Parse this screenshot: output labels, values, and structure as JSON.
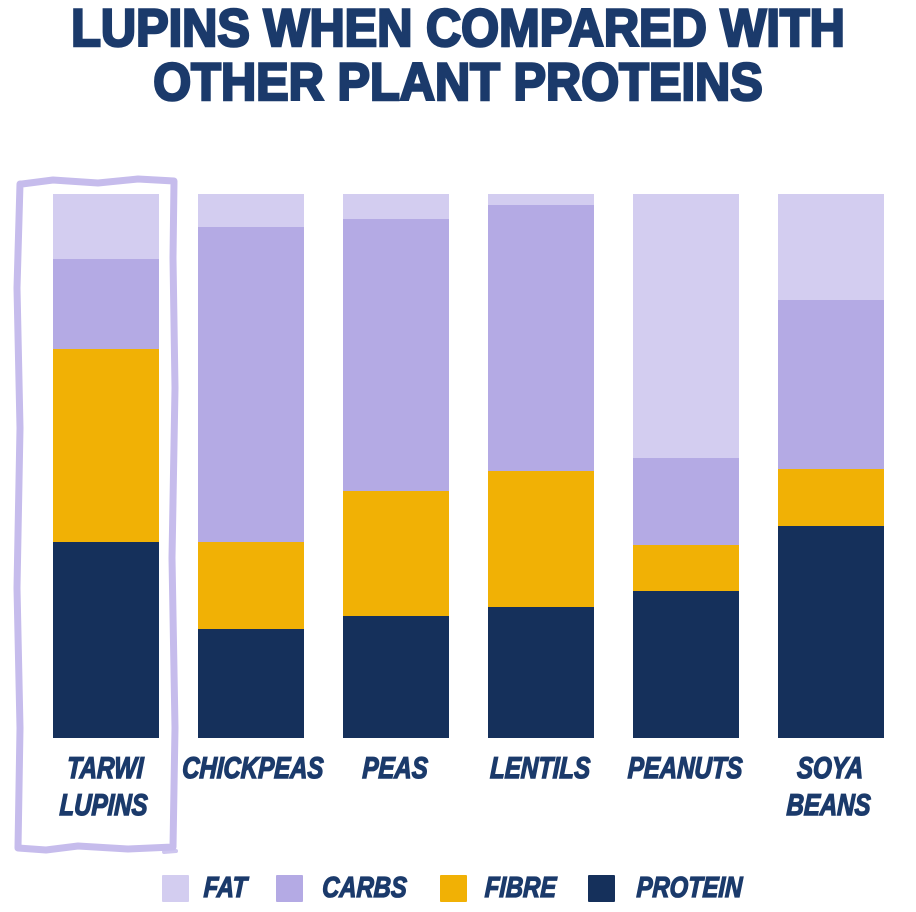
{
  "title": "LUPINS WHEN COMPARED WITH\nOTHER PLANT PROTEINS",
  "colors": {
    "fat": "#D3CDF0",
    "carbs": "#B4AAE4",
    "fibre": "#F1B105",
    "protein": "#15305B",
    "title_navy": "#1B3A6B",
    "highlight_border": "#C6BCEC",
    "background": "#FFFFFF"
  },
  "chart_data": {
    "type": "bar",
    "stacked": true,
    "unit": "percent_of_composition",
    "title": "LUPINS WHEN COMPARED WITH OTHER PLANT PROTEINS",
    "categories": [
      "TARWI\nLUPINS",
      "CHICKPEAS",
      "PEAS",
      "LENTILS",
      "PEANUTS",
      "SOYA BEANS"
    ],
    "stack_order_top_to_bottom": [
      "FAT",
      "CARBS",
      "FIBRE",
      "PROTEIN"
    ],
    "series": [
      {
        "name": "FAT",
        "color_key": "fat",
        "values": [
          12,
          6,
          4.5,
          2,
          48.5,
          19.5
        ]
      },
      {
        "name": "CARBS",
        "color_key": "carbs",
        "values": [
          16.5,
          58,
          50,
          49,
          16,
          31
        ]
      },
      {
        "name": "FIBRE",
        "color_key": "fibre",
        "values": [
          35.5,
          16,
          23,
          25,
          8.5,
          10.5
        ]
      },
      {
        "name": "PROTEIN",
        "color_key": "protein",
        "values": [
          36,
          20,
          22.5,
          24,
          27,
          39
        ]
      }
    ],
    "legend": [
      "FAT",
      "CARBS",
      "FIBRE",
      "PROTEIN"
    ],
    "legend_position": "bottom",
    "highlighted_category": "TARWI LUPINS",
    "ylim": [
      0,
      100
    ],
    "axes_hidden": true,
    "grid": false
  }
}
